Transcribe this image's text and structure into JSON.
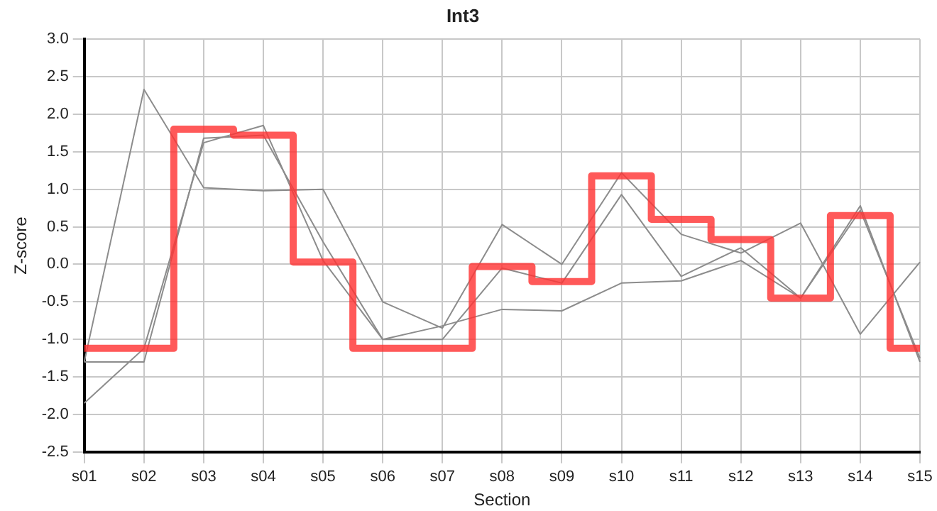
{
  "chart_data": {
    "type": "line",
    "title": "Int3",
    "xlabel": "Section",
    "ylabel": "Z-score",
    "categories": [
      "s01",
      "s02",
      "s03",
      "s04",
      "s05",
      "s06",
      "s07",
      "s08",
      "s09",
      "s10",
      "s11",
      "s12",
      "s13",
      "s14",
      "s15"
    ],
    "series": [
      {
        "color": "#8c8c8c",
        "values": [
          -1.3,
          2.33,
          1.02,
          0.98,
          1.0,
          -0.5,
          -0.85,
          0.53,
          0.0,
          1.22,
          0.4,
          0.15,
          0.55,
          -0.93,
          0.03
        ]
      },
      {
        "color": "#8c8c8c",
        "values": [
          -1.85,
          -1.12,
          1.62,
          1.85,
          0.05,
          -1.0,
          -0.82,
          -0.6,
          -0.62,
          -0.25,
          -0.22,
          0.05,
          -0.45,
          0.72,
          -1.25
        ]
      },
      {
        "color": "#8c8c8c",
        "values": [
          -1.3,
          -1.3,
          1.68,
          1.72,
          0.3,
          -1.0,
          -1.0,
          -0.05,
          -0.25,
          0.93,
          -0.16,
          0.22,
          -0.45,
          0.78,
          -1.3
        ]
      },
      {
        "type": "step",
        "color": "#ff3333",
        "values": [
          -1.12,
          -1.12,
          1.8,
          1.72,
          0.03,
          -1.12,
          -1.12,
          -0.03,
          -0.23,
          1.18,
          0.6,
          0.33,
          -0.45,
          0.65,
          -1.12
        ]
      }
    ],
    "ylim": [
      -2.5,
      3.0
    ],
    "yticks": [
      {
        "value": -2.5,
        "label": "-2.5"
      },
      {
        "value": -2,
        "label": "-2.0"
      },
      {
        "value": -1.5,
        "label": "-1.5"
      },
      {
        "value": -1,
        "label": "-1.0"
      },
      {
        "value": -0.5,
        "label": "-0.5"
      },
      {
        "value": 0,
        "label": "0.0"
      },
      {
        "value": 0.5,
        "label": "0.5"
      },
      {
        "value": 1,
        "label": "1.0"
      },
      {
        "value": 1.5,
        "label": "1.5"
      },
      {
        "value": 2,
        "label": "2.0"
      },
      {
        "value": 2.5,
        "label": "2.5"
      },
      {
        "value": 3,
        "label": "3.0"
      }
    ],
    "grid": true,
    "legend": false,
    "marker": "none",
    "line_style": "solid"
  }
}
